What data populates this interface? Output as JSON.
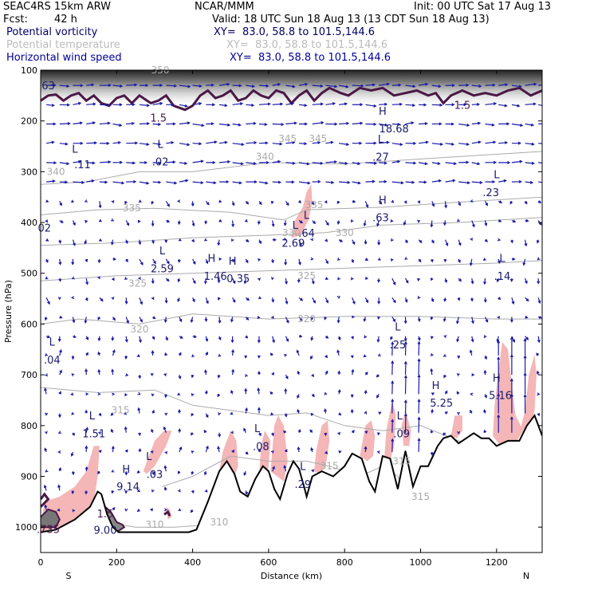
{
  "header": {
    "model": "SEAC4RS 15km ARW",
    "org": "NCAR/MMM",
    "init": "Init: 00 UTC Sat 17 Aug 13",
    "fcst_label": "Fcst:",
    "fcst_value": "42 h",
    "valid": "Valid: 18 UTC Sun 18 Aug 13 (13 CDT Sun 18 Aug 13)"
  },
  "fields": [
    {
      "name": "Potential vorticity",
      "xy": "XY=  83.0, 58.8 to 101.5,144.6",
      "color": "#000066"
    },
    {
      "name": "Potential temperature",
      "xy": "XY=  83.0, 58.8 to 101.5,144.6",
      "color": "#bbbbbb"
    },
    {
      "name": "Horizontal wind speed",
      "xy": "XY=  83.0, 58.8 to 101.5,144.6",
      "color": "#000099"
    }
  ],
  "chart_data": {
    "type": "cross-section",
    "xlabel": "Distance (km)",
    "ylabel": "Pressure (hPa)",
    "xlim": [
      0,
      1320
    ],
    "ylim": [
      1050,
      100
    ],
    "x_ticks": [
      0,
      200,
      400,
      600,
      800,
      1000,
      1200
    ],
    "y_ticks": [
      100,
      200,
      300,
      400,
      500,
      600,
      700,
      800,
      900,
      1000
    ],
    "x_end_labels": {
      "left": "S",
      "right": "N"
    },
    "colors": {
      "terrain": "#000000",
      "pv_shade": "#f4b6b6",
      "pv_line": "#4a1846",
      "theta": "#aaaaaa",
      "wind": "#1a1aa8",
      "label": "#1a1a6e"
    },
    "theta_labels": [
      {
        "x": 315,
        "p": 100,
        "v": "350"
      },
      {
        "x": 40,
        "p": 300,
        "v": "340"
      },
      {
        "x": 590,
        "p": 270,
        "v": "340"
      },
      {
        "x": 650,
        "p": 235,
        "v": "345"
      },
      {
        "x": 730,
        "p": 235,
        "v": "345"
      },
      {
        "x": 720,
        "p": 365,
        "v": "335"
      },
      {
        "x": 240,
        "p": 372,
        "v": "335"
      },
      {
        "x": 660,
        "p": 420,
        "v": "330"
      },
      {
        "x": 800,
        "p": 420,
        "v": "330"
      },
      {
        "x": 700,
        "p": 505,
        "v": "325"
      },
      {
        "x": 255,
        "p": 520,
        "v": "325"
      },
      {
        "x": 700,
        "p": 590,
        "v": "320"
      },
      {
        "x": 260,
        "p": 610,
        "v": "320"
      },
      {
        "x": 210,
        "p": 770,
        "v": "315"
      },
      {
        "x": 760,
        "p": 880,
        "v": "315"
      },
      {
        "x": 950,
        "p": 870,
        "v": "315"
      },
      {
        "x": 1000,
        "p": 940,
        "v": "315"
      },
      {
        "x": 300,
        "p": 995,
        "v": "310"
      },
      {
        "x": 470,
        "p": 990,
        "v": "310"
      }
    ],
    "pv_labels": [
      {
        "x": 20,
        "p": 1005,
        "v": ".735"
      },
      {
        "x": 170,
        "p": 975,
        "v": "1.5"
      },
      {
        "x": 310,
        "p": 195,
        "v": "1.5"
      },
      {
        "x": 1110,
        "p": 170,
        "v": "1.5"
      }
    ],
    "annotations": [
      {
        "x": 170,
        "p": 1005,
        "t": "9.00"
      },
      {
        "x": 20,
        "p": 130,
        "t": "63"
      },
      {
        "x": 10,
        "p": 410,
        "t": "02"
      },
      {
        "x": 90,
        "p": 255,
        "t": "L"
      },
      {
        "x": 110,
        "p": 285,
        "t": ".11"
      },
      {
        "x": 315,
        "p": 245,
        "t": "L"
      },
      {
        "x": 315,
        "p": 280,
        "t": ".02"
      },
      {
        "x": 900,
        "p": 180,
        "t": "H"
      },
      {
        "x": 930,
        "p": 215,
        "t": "18.68"
      },
      {
        "x": 895,
        "p": 235,
        "t": "L"
      },
      {
        "x": 895,
        "p": 270,
        "t": ".27"
      },
      {
        "x": 1200,
        "p": 305,
        "t": "L"
      },
      {
        "x": 1185,
        "p": 340,
        "t": ".23"
      },
      {
        "x": 900,
        "p": 355,
        "t": "H"
      },
      {
        "x": 895,
        "p": 390,
        "t": ".63"
      },
      {
        "x": 700,
        "p": 385,
        "t": "L"
      },
      {
        "x": 700,
        "p": 420,
        "t": ".64"
      },
      {
        "x": 670,
        "p": 405,
        "t": "L"
      },
      {
        "x": 665,
        "p": 440,
        "t": "2.69"
      },
      {
        "x": 320,
        "p": 455,
        "t": "L"
      },
      {
        "x": 320,
        "p": 490,
        "t": "2.59"
      },
      {
        "x": 450,
        "p": 470,
        "t": "H"
      },
      {
        "x": 460,
        "p": 505,
        "t": "1.46"
      },
      {
        "x": 505,
        "p": 475,
        "t": "H"
      },
      {
        "x": 520,
        "p": 510,
        "t": "0.35"
      },
      {
        "x": 1215,
        "p": 470,
        "t": "L"
      },
      {
        "x": 1215,
        "p": 505,
        "t": ".14"
      },
      {
        "x": 30,
        "p": 635,
        "t": "L"
      },
      {
        "x": 30,
        "p": 670,
        "t": ".04"
      },
      {
        "x": 940,
        "p": 605,
        "t": "L"
      },
      {
        "x": 940,
        "p": 640,
        "t": ".25"
      },
      {
        "x": 1040,
        "p": 720,
        "t": "H"
      },
      {
        "x": 1055,
        "p": 755,
        "t": "5.25"
      },
      {
        "x": 1200,
        "p": 705,
        "t": "H"
      },
      {
        "x": 1210,
        "p": 740,
        "t": "5.16"
      },
      {
        "x": 135,
        "p": 780,
        "t": "L"
      },
      {
        "x": 140,
        "p": 815,
        "t": "1.51"
      },
      {
        "x": 945,
        "p": 780,
        "t": "L"
      },
      {
        "x": 950,
        "p": 815,
        "t": ".09"
      },
      {
        "x": 570,
        "p": 805,
        "t": "L"
      },
      {
        "x": 580,
        "p": 840,
        "t": ".08"
      },
      {
        "x": 285,
        "p": 860,
        "t": "L"
      },
      {
        "x": 300,
        "p": 895,
        "t": ".03"
      },
      {
        "x": 225,
        "p": 885,
        "t": "H"
      },
      {
        "x": 230,
        "p": 920,
        "t": "9.14"
      },
      {
        "x": 690,
        "p": 880,
        "t": "L"
      },
      {
        "x": 690,
        "p": 915,
        "t": ".29"
      }
    ]
  }
}
